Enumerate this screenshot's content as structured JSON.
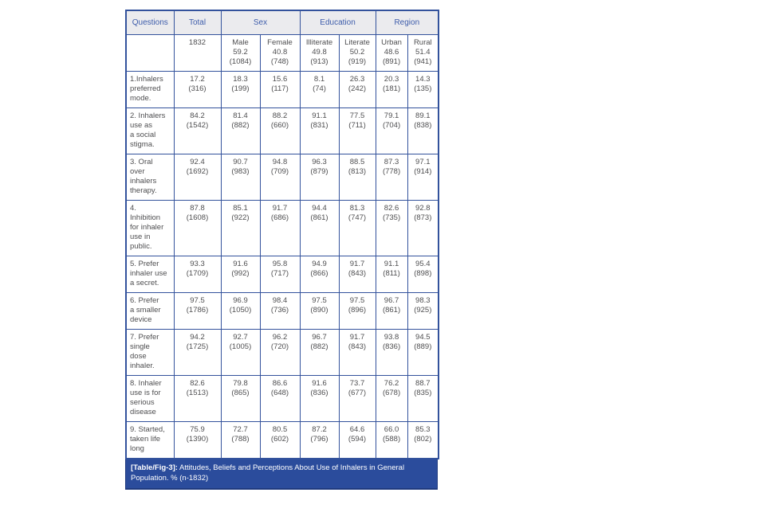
{
  "table": {
    "header": {
      "questions": "Questions",
      "total": "Total",
      "sex": "Sex",
      "education": "Education",
      "region": "Region"
    },
    "subheader": {
      "total": "1832",
      "cols": [
        {
          "label": "Male",
          "pct": "59.2",
          "n": "(1084)"
        },
        {
          "label": "Female",
          "pct": "40.8",
          "n": "(748)"
        },
        {
          "label": "Illiterate",
          "pct": "49.8",
          "n": "(913)"
        },
        {
          "label": "Literate",
          "pct": "50.2",
          "n": "(919)"
        },
        {
          "label": "Urban",
          "pct": "48.6",
          "n": "(891)"
        },
        {
          "label": "Rural",
          "pct": "51.4",
          "n": "(941)"
        }
      ]
    },
    "rows": [
      {
        "question": "1.Inhalers\npreferred\nmode.",
        "cells": [
          {
            "pct": "17.2",
            "n": "(316)"
          },
          {
            "pct": "18.3",
            "n": "(199)"
          },
          {
            "pct": "15.6",
            "n": "(117)"
          },
          {
            "pct": "8.1",
            "n": "(74)"
          },
          {
            "pct": "26.3",
            "n": "(242)"
          },
          {
            "pct": "20.3",
            "n": "(181)"
          },
          {
            "pct": "14.3",
            "n": "(135)"
          }
        ]
      },
      {
        "question": "2. Inhalers\nuse as\na social\nstigma.",
        "cells": [
          {
            "pct": "84.2",
            "n": "(1542)"
          },
          {
            "pct": "81.4",
            "n": "(882)"
          },
          {
            "pct": "88.2",
            "n": "(660)"
          },
          {
            "pct": "91.1",
            "n": "(831)"
          },
          {
            "pct": "77.5",
            "n": "(711)"
          },
          {
            "pct": "79.1",
            "n": "(704)"
          },
          {
            "pct": "89.1",
            "n": "(838)"
          }
        ]
      },
      {
        "question": "3. Oral\nover\ninhalers\ntherapy.",
        "cells": [
          {
            "pct": "92.4",
            "n": "(1692)"
          },
          {
            "pct": "90.7",
            "n": "(983)"
          },
          {
            "pct": "94.8",
            "n": "(709)"
          },
          {
            "pct": "96.3",
            "n": "(879)"
          },
          {
            "pct": "88.5",
            "n": "(813)"
          },
          {
            "pct": "87.3",
            "n": "(778)"
          },
          {
            "pct": "97.1",
            "n": "(914)"
          }
        ]
      },
      {
        "question": "4.\nInhibition\nfor inhaler\nuse in\npublic.",
        "cells": [
          {
            "pct": "87.8",
            "n": "(1608)"
          },
          {
            "pct": "85.1",
            "n": "(922)"
          },
          {
            "pct": "91.7",
            "n": "(686)"
          },
          {
            "pct": "94.4",
            "n": "(861)"
          },
          {
            "pct": "81.3",
            "n": "(747)"
          },
          {
            "pct": "82.6",
            "n": "(735)"
          },
          {
            "pct": "92.8",
            "n": "(873)"
          }
        ]
      },
      {
        "question": "5. Prefer\ninhaler use\na secret.",
        "cells": [
          {
            "pct": "93.3",
            "n": "(1709)"
          },
          {
            "pct": "91.6",
            "n": "(992)"
          },
          {
            "pct": "95.8",
            "n": "(717)"
          },
          {
            "pct": "94.9",
            "n": "(866)"
          },
          {
            "pct": "91.7",
            "n": "(843)"
          },
          {
            "pct": "91.1",
            "n": "(811)"
          },
          {
            "pct": "95.4",
            "n": "(898)"
          }
        ]
      },
      {
        "question": "6. Prefer\na smaller\ndevice",
        "cells": [
          {
            "pct": "97.5",
            "n": "(1786)"
          },
          {
            "pct": "96.9",
            "n": "(1050)"
          },
          {
            "pct": "98.4",
            "n": "(736)"
          },
          {
            "pct": "97.5",
            "n": "(890)"
          },
          {
            "pct": "97.5",
            "n": "(896)"
          },
          {
            "pct": "96.7",
            "n": "(861)"
          },
          {
            "pct": "98.3",
            "n": "(925)"
          }
        ]
      },
      {
        "question": "7. Prefer\nsingle\ndose\ninhaler.",
        "cells": [
          {
            "pct": "94.2",
            "n": "(1725)"
          },
          {
            "pct": "92.7",
            "n": "(1005)"
          },
          {
            "pct": "96.2",
            "n": "(720)"
          },
          {
            "pct": "96.7",
            "n": "(882)"
          },
          {
            "pct": "91.7",
            "n": "(843)"
          },
          {
            "pct": "93.8",
            "n": "(836)"
          },
          {
            "pct": "94.5",
            "n": "(889)"
          }
        ]
      },
      {
        "question": "8. Inhaler\nuse is for\nserious\ndisease",
        "cells": [
          {
            "pct": "82.6",
            "n": "(1513)"
          },
          {
            "pct": "79.8",
            "n": "(865)"
          },
          {
            "pct": "86.6",
            "n": "(648)"
          },
          {
            "pct": "91.6",
            "n": "(836)"
          },
          {
            "pct": "73.7",
            "n": "(677)"
          },
          {
            "pct": "76.2",
            "n": "(678)"
          },
          {
            "pct": "88.7",
            "n": "(835)"
          }
        ]
      },
      {
        "question": "9. Started,\ntaken life\nlong",
        "cells": [
          {
            "pct": "75.9",
            "n": "(1390)"
          },
          {
            "pct": "72.7",
            "n": "(788)"
          },
          {
            "pct": "80.5",
            "n": "(602)"
          },
          {
            "pct": "87.2",
            "n": "(796)"
          },
          {
            "pct": "64.6",
            "n": "(594)"
          },
          {
            "pct": "66.0",
            "n": "(588)"
          },
          {
            "pct": "85.3",
            "n": "(802)"
          }
        ]
      }
    ],
    "caption": {
      "label": "[Table/Fig-3]:",
      "text": " Attitudes, Beliefs and Perceptions About Use of Inhalers in General Population. % (n-1832)"
    },
    "colors": {
      "border": "#33529c",
      "header_bg": "#ebebee",
      "header_text": "#3e5dab",
      "body_text": "#4e4e50",
      "caption_bg": "#2b4c9c",
      "caption_text": "#ffffff"
    }
  }
}
